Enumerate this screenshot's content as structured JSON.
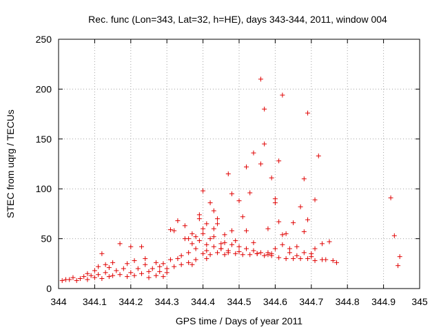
{
  "chart_data": {
    "type": "scatter",
    "title": "Rec. func (Lon=343, Lat=32, h=HE), days 343-344, 2011, window 004",
    "xlabel": "GPS time / Days of year 2011",
    "ylabel": "STEC from uqrg / TECUs",
    "xlim": [
      344,
      345
    ],
    "ylim": [
      0,
      250
    ],
    "xticks": [
      "344",
      "344.1",
      "344.2",
      "344.3",
      "344.4",
      "344.5",
      "344.6",
      "344.7",
      "344.8",
      "344.9",
      "345"
    ],
    "yticks": [
      "0",
      "50",
      "100",
      "150",
      "200",
      "250"
    ],
    "grid": true,
    "marker": "plus",
    "color": "#e00000",
    "series": [
      {
        "points": [
          [
            344.01,
            8
          ],
          [
            344.02,
            9
          ],
          [
            344.03,
            9
          ],
          [
            344.04,
            11
          ],
          [
            344.05,
            8
          ],
          [
            344.06,
            10
          ],
          [
            344.07,
            12
          ],
          [
            344.08,
            9
          ],
          [
            344.08,
            15
          ],
          [
            344.09,
            13
          ],
          [
            344.1,
            11
          ],
          [
            344.1,
            18
          ],
          [
            344.11,
            14
          ],
          [
            344.11,
            22
          ],
          [
            344.12,
            10
          ],
          [
            344.12,
            35
          ],
          [
            344.13,
            16
          ],
          [
            344.13,
            24
          ],
          [
            344.14,
            12
          ],
          [
            344.14,
            21
          ],
          [
            344.15,
            26
          ],
          [
            344.15,
            13
          ],
          [
            344.16,
            18
          ],
          [
            344.17,
            45
          ],
          [
            344.17,
            14
          ],
          [
            344.18,
            20
          ],
          [
            344.19,
            12
          ],
          [
            344.19,
            25
          ],
          [
            344.2,
            16
          ],
          [
            344.2,
            42
          ],
          [
            344.21,
            28
          ],
          [
            344.21,
            13
          ],
          [
            344.22,
            20
          ],
          [
            344.23,
            42
          ],
          [
            344.23,
            15
          ],
          [
            344.24,
            24
          ],
          [
            344.24,
            30
          ],
          [
            344.25,
            17
          ],
          [
            344.25,
            11
          ],
          [
            344.26,
            20
          ],
          [
            344.27,
            26
          ],
          [
            344.27,
            13
          ],
          [
            344.28,
            22
          ],
          [
            344.28,
            17
          ],
          [
            344.29,
            12
          ],
          [
            344.29,
            25
          ],
          [
            344.3,
            20
          ],
          [
            344.3,
            16
          ],
          [
            344.31,
            59
          ],
          [
            344.31,
            29
          ],
          [
            344.32,
            22
          ],
          [
            344.32,
            58
          ],
          [
            344.33,
            30
          ],
          [
            344.33,
            68
          ],
          [
            344.34,
            24
          ],
          [
            344.34,
            33
          ],
          [
            344.35,
            50
          ],
          [
            344.35,
            63
          ],
          [
            344.36,
            26
          ],
          [
            344.36,
            36
          ],
          [
            344.37,
            55
          ],
          [
            344.37,
            45
          ],
          [
            344.38,
            52
          ],
          [
            344.38,
            29
          ],
          [
            344.39,
            74
          ],
          [
            344.39,
            70
          ],
          [
            344.4,
            35
          ],
          [
            344.4,
            98
          ],
          [
            344.4,
            60
          ],
          [
            344.41,
            38
          ],
          [
            344.41,
            65
          ],
          [
            344.42,
            86
          ],
          [
            344.42,
            34
          ],
          [
            344.43,
            78
          ],
          [
            344.43,
            52
          ],
          [
            344.44,
            36
          ],
          [
            344.44,
            70
          ],
          [
            344.45,
            45
          ],
          [
            344.45,
            40
          ],
          [
            344.46,
            54
          ],
          [
            344.47,
            115
          ],
          [
            344.47,
            36
          ],
          [
            344.48,
            95
          ],
          [
            344.48,
            58
          ],
          [
            344.49,
            48
          ],
          [
            344.5,
            88
          ],
          [
            344.5,
            37
          ],
          [
            344.51,
            72
          ],
          [
            344.52,
            122
          ],
          [
            344.52,
            58
          ],
          [
            344.53,
            96
          ],
          [
            344.54,
            46
          ],
          [
            344.54,
            136
          ],
          [
            344.55,
            35
          ],
          [
            344.56,
            210
          ],
          [
            344.56,
            125
          ],
          [
            344.57,
            180
          ],
          [
            344.57,
            145
          ],
          [
            344.58,
            36
          ],
          [
            344.58,
            60
          ],
          [
            344.59,
            111
          ],
          [
            344.59,
            35
          ],
          [
            344.6,
            90
          ],
          [
            344.6,
            86
          ],
          [
            344.61,
            128
          ],
          [
            344.61,
            67
          ],
          [
            344.62,
            54
          ],
          [
            344.62,
            194
          ],
          [
            344.63,
            55
          ],
          [
            344.64,
            40
          ],
          [
            344.65,
            66
          ],
          [
            344.66,
            33
          ],
          [
            344.67,
            82
          ],
          [
            344.68,
            57
          ],
          [
            344.68,
            110
          ],
          [
            344.69,
            176
          ],
          [
            344.69,
            69
          ],
          [
            344.7,
            32
          ],
          [
            344.71,
            89
          ],
          [
            344.71,
            40
          ],
          [
            344.72,
            133
          ],
          [
            344.73,
            45
          ],
          [
            344.74,
            29
          ],
          [
            344.75,
            47
          ],
          [
            344.76,
            28
          ],
          [
            344.77,
            26
          ],
          [
            344.92,
            91
          ],
          [
            344.93,
            53
          ],
          [
            344.94,
            23
          ],
          [
            344.945,
            32
          ],
          [
            344.4,
            55
          ],
          [
            344.41,
            30
          ],
          [
            344.42,
            50
          ],
          [
            344.43,
            60
          ],
          [
            344.44,
            65
          ],
          [
            344.46,
            34
          ],
          [
            344.47,
            38
          ],
          [
            344.49,
            35
          ],
          [
            344.51,
            34
          ],
          [
            344.53,
            34
          ],
          [
            344.55,
            35
          ],
          [
            344.57,
            33
          ],
          [
            344.59,
            33
          ],
          [
            344.61,
            31
          ],
          [
            344.63,
            30
          ],
          [
            344.65,
            30
          ],
          [
            344.67,
            30
          ],
          [
            344.69,
            30
          ],
          [
            344.71,
            28
          ],
          [
            344.73,
            29
          ],
          [
            344.36,
            50
          ],
          [
            344.37,
            24
          ],
          [
            344.38,
            40
          ],
          [
            344.39,
            48
          ],
          [
            344.41,
            44
          ],
          [
            344.43,
            42
          ],
          [
            344.45,
            40
          ],
          [
            344.46,
            46
          ],
          [
            344.48,
            44
          ],
          [
            344.5,
            42
          ],
          [
            344.52,
            40
          ],
          [
            344.54,
            38
          ],
          [
            344.56,
            36
          ],
          [
            344.58,
            34
          ],
          [
            344.6,
            40
          ],
          [
            344.62,
            44
          ],
          [
            344.64,
            36
          ],
          [
            344.66,
            42
          ],
          [
            344.68,
            36
          ],
          [
            344.7,
            35
          ]
        ]
      }
    ]
  }
}
